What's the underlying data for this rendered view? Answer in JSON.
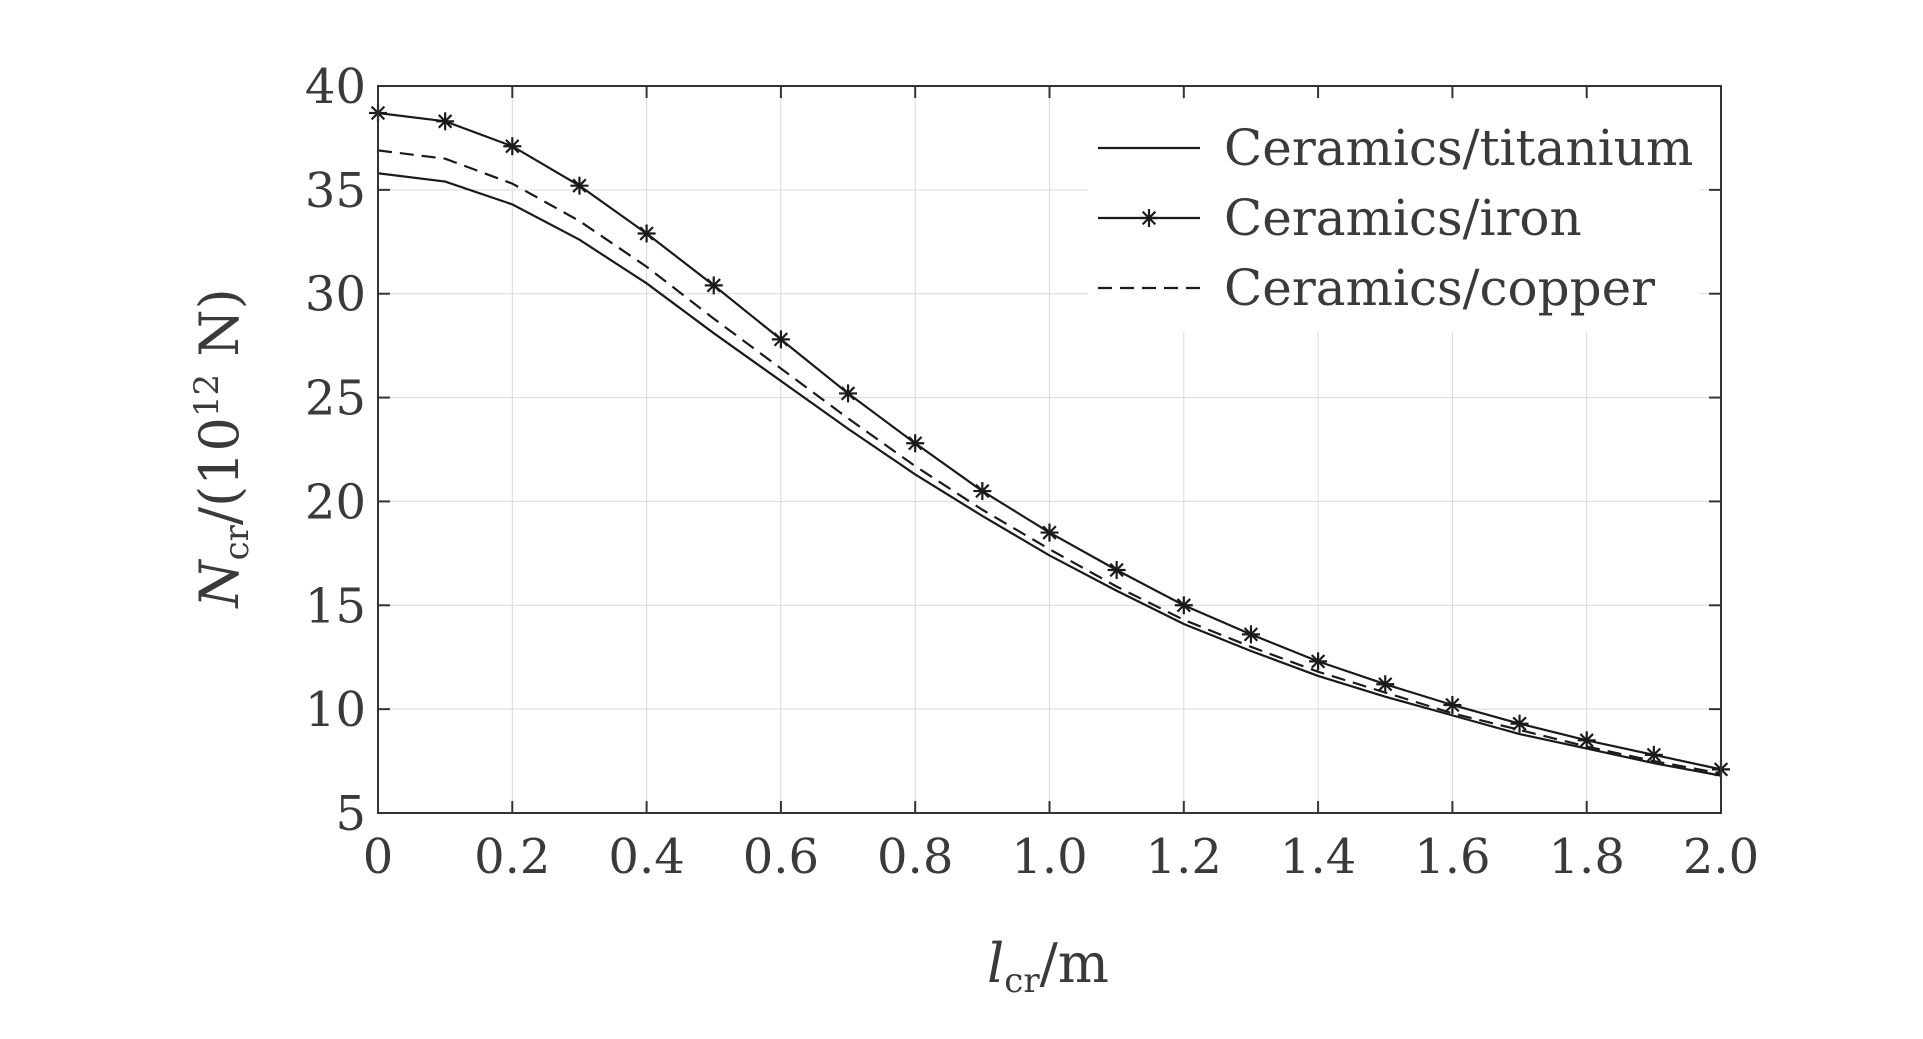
{
  "chart_data": {
    "type": "line",
    "xlabel": {
      "main": "l",
      "sub": "cr",
      "rest": "/m"
    },
    "ylabel": {
      "main": "N",
      "sub": "cr",
      "mid": "/(10",
      "sup": "12",
      "rest": " N)"
    },
    "xlim": [
      0,
      2.0
    ],
    "ylim": [
      5,
      40
    ],
    "x_ticks": [
      0,
      0.2,
      0.4,
      0.6,
      0.8,
      1.0,
      1.2,
      1.4,
      1.6,
      1.8,
      2.0
    ],
    "x_tick_labels": [
      "0",
      "0.2",
      "0.4",
      "0.6",
      "0.8",
      "1.0",
      "1.2",
      "1.4",
      "1.6",
      "1.8",
      "2.0"
    ],
    "y_ticks": [
      5,
      10,
      15,
      20,
      25,
      30,
      35,
      40
    ],
    "y_tick_labels": [
      "5",
      "10",
      "15",
      "20",
      "25",
      "30",
      "35",
      "40"
    ],
    "grid": true,
    "legend_position": "top-right",
    "x": [
      0,
      0.1,
      0.2,
      0.3,
      0.4,
      0.5,
      0.6,
      0.7,
      0.8,
      0.9,
      1.0,
      1.1,
      1.2,
      1.3,
      1.4,
      1.5,
      1.6,
      1.7,
      1.8,
      1.9,
      2.0
    ],
    "series": [
      {
        "name": "Ceramics/titanium",
        "style": "solid",
        "marker": "none",
        "color": "#1a1a1a",
        "values": [
          35.8,
          35.4,
          34.3,
          32.6,
          30.5,
          28.1,
          25.8,
          23.5,
          21.3,
          19.3,
          17.4,
          15.7,
          14.1,
          12.8,
          11.6,
          10.6,
          9.7,
          8.8,
          8.1,
          7.4,
          6.8
        ]
      },
      {
        "name": "Ceramics/iron",
        "style": "solid",
        "marker": "asterisk",
        "color": "#1a1a1a",
        "values": [
          38.7,
          38.3,
          37.1,
          35.2,
          32.9,
          30.4,
          27.8,
          25.2,
          22.8,
          20.5,
          18.5,
          16.7,
          15.0,
          13.6,
          12.3,
          11.2,
          10.2,
          9.3,
          8.5,
          7.8,
          7.1
        ]
      },
      {
        "name": "Ceramics/copper",
        "style": "dashed",
        "marker": "none",
        "color": "#1a1a1a",
        "values": [
          36.9,
          36.5,
          35.3,
          33.5,
          31.3,
          28.8,
          26.4,
          24.0,
          21.7,
          19.6,
          17.7,
          15.9,
          14.3,
          13.0,
          11.8,
          10.8,
          9.8,
          9.0,
          8.2,
          7.5,
          6.9
        ]
      }
    ]
  }
}
